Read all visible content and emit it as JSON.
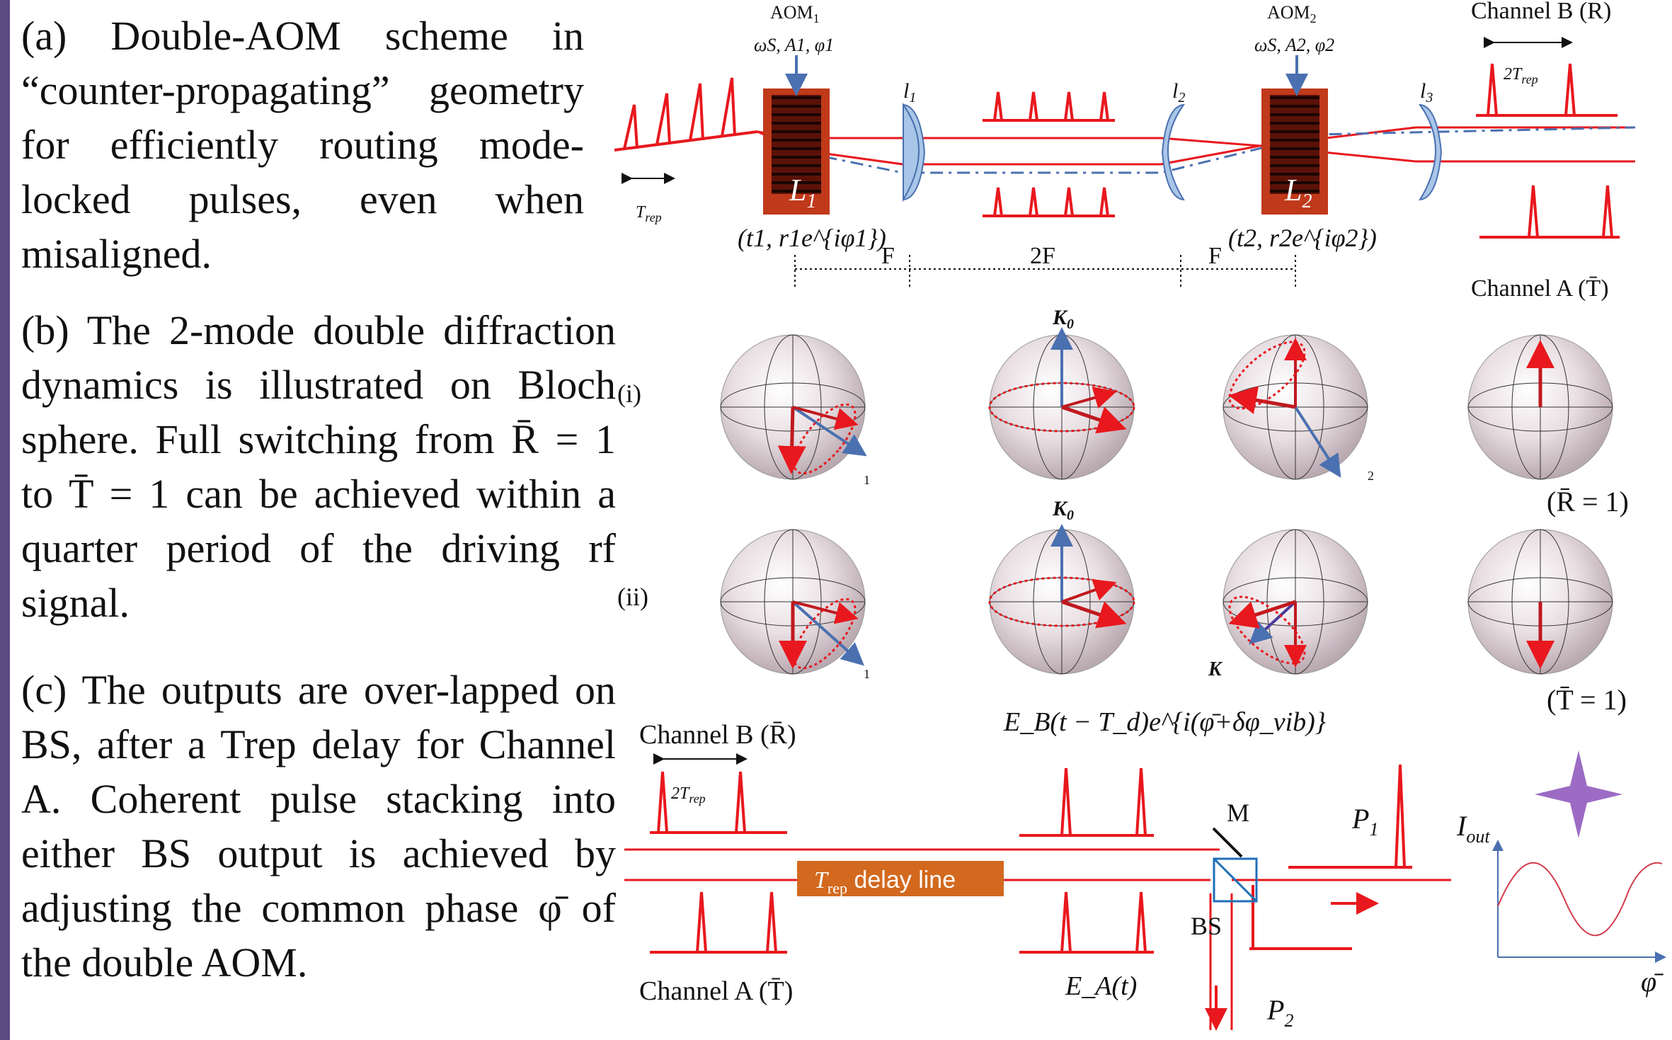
{
  "text": {
    "a": "(a) Double-AOM scheme in “counter-propagating” geometry for efficiently routing mode-locked pulses, even when misaligned.",
    "b": "(b) The 2-mode double diffraction dynamics is illustrated on Bloch sphere. Full switching from R̄ = 1 to T̄ = 1 can be achieved within a quarter period of the driving rf signal.",
    "c": "(c) The outputs are over-lapped on BS, after a Trep delay for Channel A. Coherent pulse stacking into either BS output is achieved by adjusting the common phase φ̄ of the double AOM."
  },
  "diagram_a": {
    "aom1": "AOM",
    "aom1_sub": "1",
    "aom1_params": "ωS, A1, φ1",
    "aom2": "AOM",
    "aom2_sub": "2",
    "aom2_params": "ωS, A2, φ2",
    "channel_b": "Channel B (R)",
    "channel_b_period": "2T",
    "channel_b_period_sub": "rep",
    "channel_a": "Channel A (T̄)",
    "lens1": "l",
    "lens1_sub": "1",
    "lens2": "l",
    "lens2_sub": "2",
    "lens3": "l",
    "lens3_sub": "3",
    "crystal1": "L",
    "crystal1_sub": "1",
    "crystal2": "L",
    "crystal2_sub": "2",
    "t1": "(t1, r1e^{iφ1})",
    "t2": "(t2, r2e^{iφ2})",
    "trep": "T",
    "trep_sub": "rep",
    "dist_f1": "F",
    "dist_2f": "2F",
    "dist_f2": "F"
  },
  "diagram_b": {
    "row1_label": "(i)",
    "row2_label": "(ii)",
    "k0_top": "K",
    "k0_top_sub": "0",
    "k0_mid": "K",
    "k0_mid_sub": "0",
    "frag1": "1",
    "frag2": "2",
    "frag3": "1",
    "frag4": "K",
    "result1": "(R̄ = 1)",
    "result2": "(T̄ = 1)"
  },
  "diagram_c": {
    "channel_b": "Channel B (R̄)",
    "channel_b_period": "2T",
    "channel_b_period_sub": "rep",
    "eb": "E_B(t − T_d)e^{i(φ̄+δφ_vib)}",
    "ea": "E_A(t)",
    "channel_a": "Channel A (T̄)",
    "delay": "T",
    "delay_sub": "rep",
    "delay_rest": " delay line",
    "mirror": "M",
    "bs": "BS",
    "p1": "P",
    "p1_sub": "1",
    "p2": "P",
    "p2_sub": "2",
    "iout": "I",
    "iout_sub": "out",
    "phi": "φ̄"
  },
  "colors": {
    "pulse": "#e8181e",
    "crystal": "#c0391a",
    "lens": "#a9c6e8",
    "beam_blue": "#4a70b0",
    "delay_box": "#d2691e",
    "star": "#9c6bc4",
    "sidebar": "#5a4a82"
  }
}
